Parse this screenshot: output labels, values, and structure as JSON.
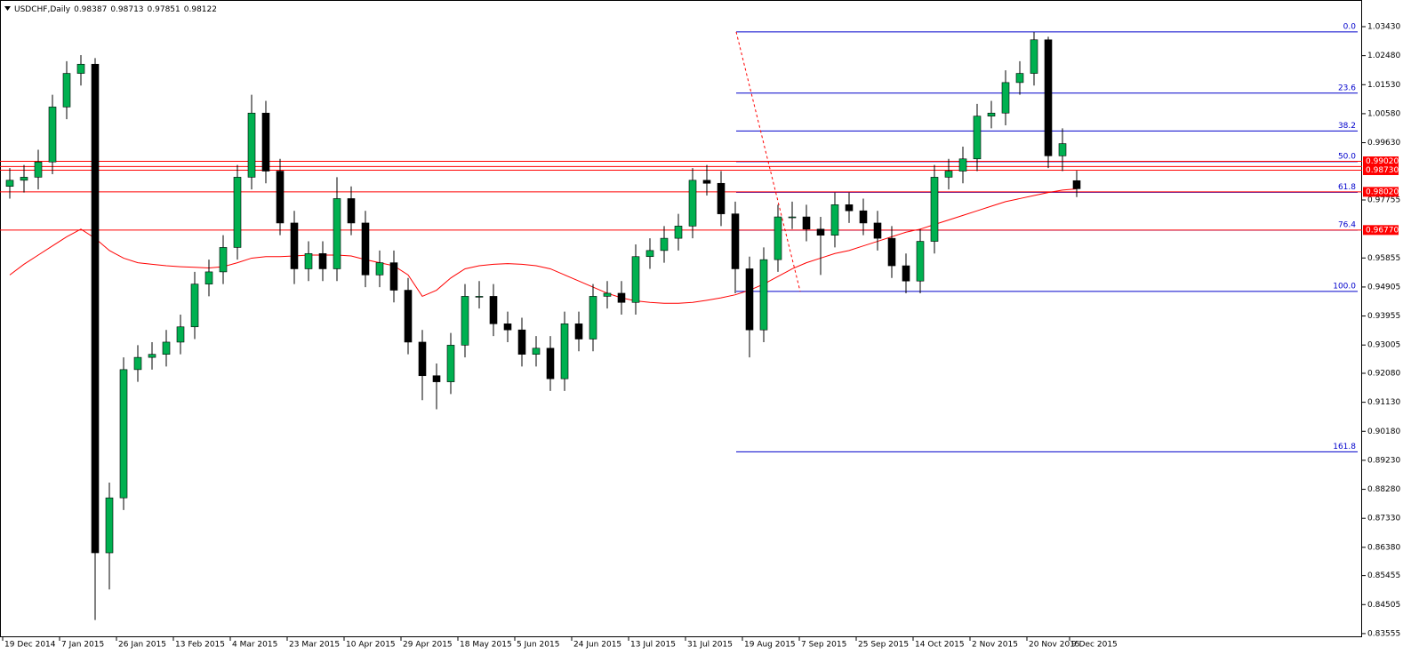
{
  "chart_data": {
    "type": "candlestick",
    "symbol": "USDCHF,Daily",
    "header_values": [
      0.98387,
      0.98713,
      0.97851,
      0.98122
    ],
    "categories": [
      "19 Dec 2014",
      null,
      null,
      null,
      "7 Jan 2015",
      null,
      null,
      null,
      "26 Jan 2015",
      null,
      null,
      null,
      "13 Feb 2015",
      null,
      null,
      null,
      "4 Mar 2015",
      null,
      null,
      null,
      "23 Mar 2015",
      null,
      null,
      null,
      "10 Apr 2015",
      null,
      null,
      null,
      "29 Apr 2015",
      null,
      null,
      null,
      "18 May 2015",
      null,
      null,
      null,
      "5 Jun 2015",
      null,
      null,
      null,
      "24 Jun 2015",
      null,
      null,
      null,
      "13 Jul 2015",
      null,
      null,
      null,
      "31 Jul 2015",
      null,
      null,
      null,
      "19 Aug 2015",
      null,
      null,
      null,
      "7 Sep 2015",
      null,
      null,
      null,
      "25 Sep 2015",
      null,
      null,
      null,
      "14 Oct 2015",
      null,
      null,
      null,
      "2 Nov 2015",
      null,
      null,
      null,
      "20 Nov 2015",
      null,
      null,
      "9 Dec 2015"
    ],
    "open": [
      0.982,
      0.984,
      0.985,
      0.99,
      1.008,
      1.019,
      1.022,
      0.862,
      0.88,
      0.922,
      0.926,
      0.927,
      0.931,
      0.936,
      0.95,
      0.954,
      0.962,
      0.985,
      1.006,
      0.987,
      0.97,
      0.955,
      0.96,
      0.955,
      0.978,
      0.97,
      0.953,
      0.957,
      0.948,
      0.931,
      0.92,
      0.918,
      0.93,
      0.946,
      0.946,
      0.937,
      0.935,
      0.927,
      0.929,
      0.919,
      0.937,
      0.932,
      0.946,
      0.947,
      0.944,
      0.959,
      0.961,
      0.965,
      0.969,
      0.984,
      0.983,
      0.973,
      0.955,
      0.935,
      0.958,
      0.972,
      0.972,
      0.968,
      0.966,
      0.976,
      0.974,
      0.97,
      0.965,
      0.956,
      0.951,
      0.964,
      0.985,
      0.987,
      0.991,
      1.005,
      1.006,
      1.016,
      1.019,
      1.03,
      0.992,
      0.98387
    ],
    "high": [
      0.988,
      0.989,
      0.994,
      1.012,
      1.023,
      1.025,
      1.024,
      0.885,
      0.926,
      0.93,
      0.931,
      0.935,
      0.94,
      0.954,
      0.958,
      0.966,
      0.989,
      1.012,
      1.01,
      0.991,
      0.974,
      0.964,
      0.964,
      0.985,
      0.982,
      0.974,
      0.961,
      0.961,
      0.952,
      0.935,
      0.924,
      0.934,
      0.95,
      0.951,
      0.95,
      0.941,
      0.939,
      0.933,
      0.933,
      0.941,
      0.941,
      0.95,
      0.951,
      0.951,
      0.963,
      0.965,
      0.969,
      0.973,
      0.988,
      0.989,
      0.987,
      0.977,
      0.959,
      0.962,
      0.976,
      0.977,
      0.976,
      0.972,
      0.98,
      0.98,
      0.978,
      0.974,
      0.969,
      0.96,
      0.968,
      0.989,
      0.991,
      0.995,
      1.009,
      1.01,
      1.02,
      1.023,
      1.0325,
      1.031,
      1.001,
      0.98713
    ],
    "low": [
      0.978,
      0.98,
      0.981,
      0.986,
      1.004,
      1.015,
      0.84,
      0.85,
      0.876,
      0.918,
      0.922,
      0.923,
      0.927,
      0.932,
      0.946,
      0.95,
      0.958,
      0.981,
      0.983,
      0.966,
      0.95,
      0.951,
      0.951,
      0.951,
      0.966,
      0.949,
      0.949,
      0.944,
      0.927,
      0.912,
      0.909,
      0.914,
      0.926,
      0.942,
      0.933,
      0.931,
      0.923,
      0.923,
      0.915,
      0.915,
      0.928,
      0.928,
      0.942,
      0.94,
      0.94,
      0.955,
      0.957,
      0.961,
      0.965,
      0.979,
      0.969,
      0.947,
      0.926,
      0.931,
      0.954,
      0.968,
      0.964,
      0.953,
      0.962,
      0.97,
      0.966,
      0.961,
      0.952,
      0.947,
      0.947,
      0.96,
      0.981,
      0.983,
      0.987,
      1.001,
      1.002,
      1.012,
      1.015,
      0.988,
      0.987,
      0.97851
    ],
    "close": [
      0.984,
      0.985,
      0.99,
      1.008,
      1.019,
      1.022,
      0.862,
      0.88,
      0.922,
      0.926,
      0.927,
      0.931,
      0.936,
      0.95,
      0.954,
      0.962,
      0.985,
      1.006,
      0.987,
      0.97,
      0.955,
      0.96,
      0.955,
      0.978,
      0.97,
      0.953,
      0.957,
      0.948,
      0.931,
      0.92,
      0.918,
      0.93,
      0.946,
      0.946,
      0.937,
      0.935,
      0.927,
      0.929,
      0.919,
      0.937,
      0.932,
      0.946,
      0.947,
      0.944,
      0.959,
      0.961,
      0.965,
      0.969,
      0.984,
      0.983,
      0.973,
      0.955,
      0.935,
      0.958,
      0.972,
      0.972,
      0.968,
      0.966,
      0.976,
      0.974,
      0.97,
      0.965,
      0.956,
      0.951,
      0.964,
      0.985,
      0.987,
      0.991,
      1.005,
      1.006,
      1.016,
      1.019,
      1.03,
      0.992,
      0.996,
      0.98122
    ],
    "up_color": "#00b050",
    "down_color": "#000000",
    "ma": {
      "color": "#ff0000",
      "values": [
        0.953,
        0.9565,
        0.9595,
        0.9625,
        0.9655,
        0.968,
        0.965,
        0.961,
        0.9585,
        0.957,
        0.9565,
        0.956,
        0.9557,
        0.9555,
        0.9553,
        0.9557,
        0.957,
        0.9585,
        0.959,
        0.959,
        0.9592,
        0.9595,
        0.9595,
        0.9595,
        0.9592,
        0.958,
        0.957,
        0.956,
        0.953,
        0.946,
        0.948,
        0.952,
        0.955,
        0.956,
        0.9565,
        0.9567,
        0.9565,
        0.956,
        0.955,
        0.953,
        0.951,
        0.949,
        0.947,
        0.9455,
        0.9445,
        0.944,
        0.9437,
        0.9437,
        0.944,
        0.9447,
        0.9455,
        0.9465,
        0.948,
        0.95,
        0.9525,
        0.955,
        0.957,
        0.9585,
        0.96,
        0.961,
        0.9625,
        0.964,
        0.9655,
        0.967,
        0.968,
        0.9695,
        0.971,
        0.9725,
        0.974,
        0.9755,
        0.977,
        0.978,
        0.979,
        0.98,
        0.9808,
        0.9812
      ]
    },
    "ylim": [
      0.83436,
      1.04303
    ],
    "yticks": [
      {
        "value": 1.0343,
        "label": "1.03430"
      },
      {
        "value": 1.0248,
        "label": "1.02480"
      },
      {
        "value": 1.0153,
        "label": "1.01530"
      },
      {
        "value": 1.0058,
        "label": "1.00580"
      },
      {
        "value": 0.9963,
        "label": "0.99630"
      },
      {
        "value": 0.97755,
        "label": "0.97755"
      },
      {
        "value": 0.95855,
        "label": "0.95855"
      },
      {
        "value": 0.94905,
        "label": "0.94905"
      },
      {
        "value": 0.93955,
        "label": "0.93955"
      },
      {
        "value": 0.93005,
        "label": "0.93005"
      },
      {
        "value": 0.9208,
        "label": "0.92080"
      },
      {
        "value": 0.9113,
        "label": "0.91130"
      },
      {
        "value": 0.9018,
        "label": "0.90180"
      },
      {
        "value": 0.8923,
        "label": "0.89230"
      },
      {
        "value": 0.8828,
        "label": "0.88280"
      },
      {
        "value": 0.8733,
        "label": "0.87330"
      },
      {
        "value": 0.8638,
        "label": "0.86380"
      },
      {
        "value": 0.85455,
        "label": "0.85455"
      },
      {
        "value": 0.84505,
        "label": "0.84505"
      },
      {
        "value": 0.83555,
        "label": "0.83555"
      }
    ],
    "levels": [
      {
        "value": 0.9902,
        "label": "0.99020"
      },
      {
        "value": 0.9885
      },
      {
        "value": 0.9873,
        "label": "0.98730"
      },
      {
        "value": 0.9802,
        "label": "0.98020"
      },
      {
        "value": 0.9677,
        "label": "0.96770"
      }
    ],
    "level_color": "#ff0000",
    "fibonacci": {
      "high": 1.0326,
      "low": 0.9476,
      "color": "#0000cc",
      "levels": [
        {
          "value": 0,
          "label": "0.0"
        },
        {
          "value": 23.6,
          "label": "23.6"
        },
        {
          "value": 38.2,
          "label": "38.2"
        },
        {
          "value": 50,
          "label": "50.0"
        },
        {
          "value": 61.8,
          "label": "61.8"
        },
        {
          "value": 76.4,
          "label": "76.4"
        },
        {
          "value": 100,
          "label": "100.0"
        },
        {
          "value": 161.8,
          "label": "161.8"
        }
      ]
    }
  }
}
